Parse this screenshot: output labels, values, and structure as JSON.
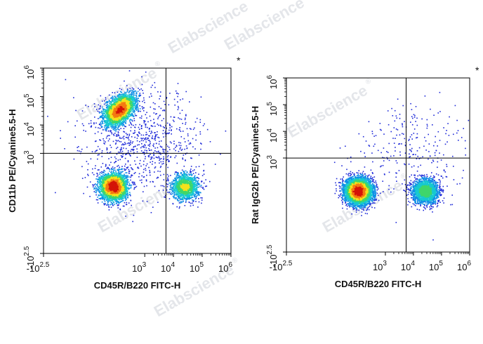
{
  "colors": {
    "density": [
      "#1e2ad8",
      "#0f8fe6",
      "#16c9d0",
      "#3fd66a",
      "#f4e21c",
      "#f47a12",
      "#d41408"
    ],
    "gate_line": "#000000",
    "frame": "#000000",
    "watermark": "#e4e6ea"
  },
  "watermark": {
    "text": "Elabscience",
    "mark": "®"
  },
  "chart_data": [
    {
      "type": "scatter",
      "subtype": "flow-cytometry-density-dot-plot",
      "title": "",
      "annotation": "*",
      "xlabel": "CD45R/B220 FITC-H",
      "ylabel": "CD11b PE/Cyanine5.5-H",
      "x_scale": "biexponential",
      "y_scale": "biexponential",
      "x_ticks": [
        {
          "label": "-10",
          "sup": "2.5",
          "value": -316
        },
        {
          "label": "10",
          "sup": "3",
          "value": 1000
        },
        {
          "label": "10",
          "sup": "4",
          "value": 10000
        },
        {
          "label": "10",
          "sup": "5",
          "value": 100000
        },
        {
          "label": "10",
          "sup": "6",
          "value": 1000000
        }
      ],
      "y_ticks": [
        {
          "label": "-10",
          "sup": "2.5",
          "value": -316
        },
        {
          "label": "10",
          "sup": "3",
          "value": 1000
        },
        {
          "label": "10",
          "sup": "4",
          "value": 10000
        },
        {
          "label": "10",
          "sup": "5",
          "value": 100000
        },
        {
          "label": "10",
          "sup": "6",
          "value": 1000000
        }
      ],
      "quadrant_gate": {
        "x": 5500,
        "y": 1000
      },
      "populations": [
        {
          "center": [
            120,
            35000
          ],
          "weight": 0.36
        },
        {
          "center": [
            70,
            60
          ],
          "weight": 0.38
        },
        {
          "center": [
            25000,
            60
          ],
          "weight": 0.16
        },
        {
          "center": [
            800,
            2500
          ],
          "weight": 0.1
        }
      ],
      "grid": false,
      "legend": "none"
    },
    {
      "type": "scatter",
      "subtype": "flow-cytometry-density-dot-plot",
      "title": "",
      "annotation": "*",
      "xlabel": "CD45R/B220 FITC-H",
      "ylabel": "Rat IgG2b PE/Cyanine5.5-H",
      "x_scale": "biexponential",
      "y_scale": "biexponential",
      "x_ticks": [
        {
          "label": "-10",
          "sup": "2.5",
          "value": -316
        },
        {
          "label": "10",
          "sup": "3",
          "value": 1000
        },
        {
          "label": "10",
          "sup": "4",
          "value": 10000
        },
        {
          "label": "10",
          "sup": "5",
          "value": 100000
        },
        {
          "label": "10",
          "sup": "6",
          "value": 1000000
        }
      ],
      "y_ticks": [
        {
          "label": "-10",
          "sup": "2.5",
          "value": -316
        },
        {
          "label": "10",
          "sup": "3",
          "value": 1000
        },
        {
          "label": "10",
          "sup": "4",
          "value": 10000
        },
        {
          "label": "10",
          "sup": "5",
          "value": 100000
        },
        {
          "label": "10",
          "sup": "6",
          "value": 1000000
        }
      ],
      "quadrant_gate": {
        "x": 5500,
        "y": 1000
      },
      "populations": [
        {
          "center": [
            100,
            50
          ],
          "weight": 0.72
        },
        {
          "center": [
            25000,
            50
          ],
          "weight": 0.25
        },
        {
          "center": [
            8000,
            1500
          ],
          "weight": 0.03
        }
      ],
      "grid": false,
      "legend": "none"
    }
  ]
}
